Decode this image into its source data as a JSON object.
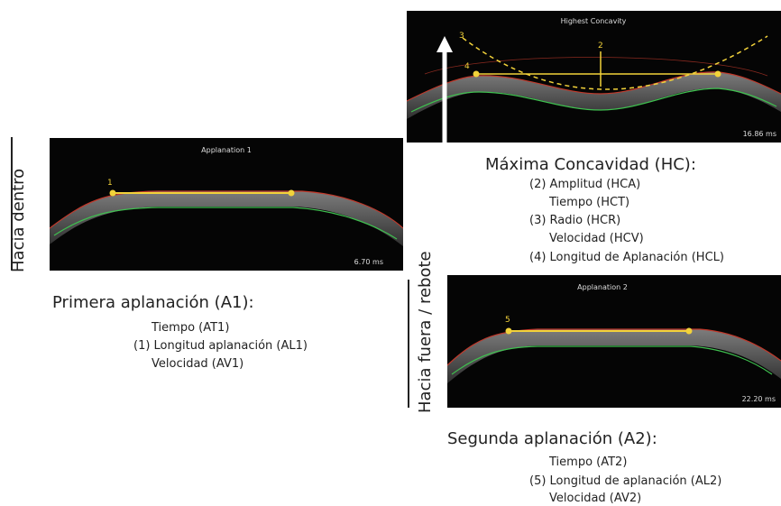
{
  "panels": [
    {
      "title": "Applanation 1",
      "time": "6.70 ms",
      "markers": [
        "1"
      ]
    },
    {
      "title": "Highest Concavity",
      "time": "16.86 ms",
      "markers": [
        "3",
        "2",
        "4"
      ]
    },
    {
      "title": "Applanation 2",
      "time": "22.20 ms",
      "markers": [
        "5"
      ]
    }
  ],
  "side_labels": [
    "Hacia dentro",
    "Hacia fuera / rebote"
  ],
  "sections": [
    {
      "heading": "Primera aplanación (A1):",
      "items": [
        "Tiempo (AT1)",
        "(1) Longitud aplanación (AL1)",
        "Velocidad (AV1)"
      ]
    },
    {
      "heading": "Máxima Concavidad (HC):",
      "items": [
        "(2) Amplitud (HCA)",
        "Tiempo (HCT)",
        "(3) Radio (HCR)",
        "Velocidad (HCV)",
        "(4) Longitud de Aplanación (HCL)"
      ]
    },
    {
      "heading": "Segunda aplanación (A2):",
      "items": [
        "Tiempo (AT2)",
        "(5) Longitud de aplanación (AL2)",
        "Velocidad (AV2)"
      ]
    }
  ]
}
